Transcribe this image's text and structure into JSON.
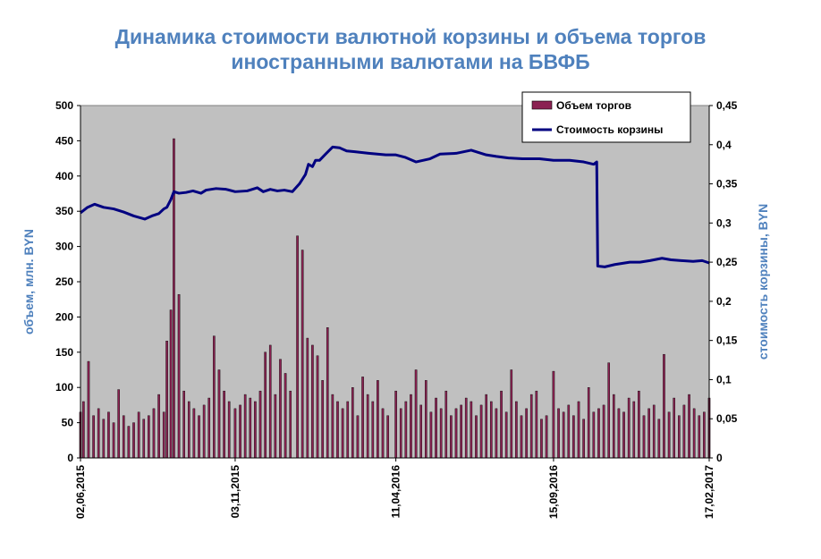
{
  "chart_data": {
    "type": "bar+line",
    "title_lines": [
      "Динамика стоимости валютной корзины и объема торгов",
      "иностранными валютами на БВФБ"
    ],
    "ylabel_left": "объем, млн. BYN",
    "ylabel_right": "стоимость корзины, BYN",
    "ylim_left": [
      0,
      500
    ],
    "ylim_right": [
      0,
      0.45
    ],
    "yticks_left": [
      "0",
      "50",
      "100",
      "150",
      "200",
      "250",
      "300",
      "350",
      "400",
      "450",
      "500"
    ],
    "yticks_right": [
      "0",
      "0,05",
      "0,1",
      "0,15",
      "0,2",
      "0,25",
      "0,3",
      "0,35",
      "0,4",
      "0,45"
    ],
    "x_tick_labels": [
      "02,06,2015",
      "03,11,2015",
      "11,04,2016",
      "15,09,2016",
      "17,02,2017"
    ],
    "x_range": [
      "2015-06-02",
      "2017-02-17"
    ],
    "x_ticks": [
      "2015-06-02",
      "2015-11-03",
      "2016-04-11",
      "2016-09-15",
      "2017-02-17"
    ],
    "grid": false,
    "plot_background": "#c0c0c0",
    "legend_position": "top-right",
    "series": [
      {
        "name": "Объем торгов",
        "type": "bar",
        "axis": "left",
        "color": "#8b2252",
        "dates": [
          "2015-06-02",
          "2015-06-05",
          "2015-06-10",
          "2015-06-15",
          "2015-06-20",
          "2015-06-25",
          "2015-06-30",
          "2015-07-05",
          "2015-07-10",
          "2015-07-15",
          "2015-07-20",
          "2015-07-25",
          "2015-07-30",
          "2015-08-04",
          "2015-08-09",
          "2015-08-14",
          "2015-08-19",
          "2015-08-24",
          "2015-08-27",
          "2015-08-31",
          "2015-09-03",
          "2015-09-08",
          "2015-09-13",
          "2015-09-18",
          "2015-09-23",
          "2015-09-28",
          "2015-10-03",
          "2015-10-08",
          "2015-10-13",
          "2015-10-18",
          "2015-10-23",
          "2015-10-28",
          "2015-11-03",
          "2015-11-08",
          "2015-11-13",
          "2015-11-18",
          "2015-11-23",
          "2015-11-28",
          "2015-12-03",
          "2015-12-08",
          "2015-12-13",
          "2015-12-18",
          "2015-12-23",
          "2015-12-28",
          "2016-01-04",
          "2016-01-09",
          "2016-01-14",
          "2016-01-19",
          "2016-01-24",
          "2016-01-29",
          "2016-02-03",
          "2016-02-08",
          "2016-02-13",
          "2016-02-18",
          "2016-02-23",
          "2016-02-28",
          "2016-03-04",
          "2016-03-09",
          "2016-03-14",
          "2016-03-19",
          "2016-03-24",
          "2016-03-29",
          "2016-04-03",
          "2016-04-11",
          "2016-04-16",
          "2016-04-21",
          "2016-04-26",
          "2016-05-01",
          "2016-05-06",
          "2016-05-11",
          "2016-05-16",
          "2016-05-21",
          "2016-05-26",
          "2016-05-31",
          "2016-06-05",
          "2016-06-10",
          "2016-06-15",
          "2016-06-20",
          "2016-06-25",
          "2016-06-30",
          "2016-07-05",
          "2016-07-10",
          "2016-07-15",
          "2016-07-20",
          "2016-07-25",
          "2016-07-30",
          "2016-08-04",
          "2016-08-09",
          "2016-08-14",
          "2016-08-19",
          "2016-08-24",
          "2016-08-29",
          "2016-09-03",
          "2016-09-08",
          "2016-09-15",
          "2016-09-20",
          "2016-09-25",
          "2016-09-30",
          "2016-10-05",
          "2016-10-10",
          "2016-10-15",
          "2016-10-20",
          "2016-10-25",
          "2016-10-30",
          "2016-11-04",
          "2016-11-09",
          "2016-11-14",
          "2016-11-19",
          "2016-11-24",
          "2016-11-29",
          "2016-12-04",
          "2016-12-09",
          "2016-12-14",
          "2016-12-19",
          "2016-12-24",
          "2016-12-29",
          "2017-01-03",
          "2017-01-08",
          "2017-01-13",
          "2017-01-18",
          "2017-01-23",
          "2017-01-28",
          "2017-02-02",
          "2017-02-07",
          "2017-02-12",
          "2017-02-17"
        ],
        "values": [
          65,
          80,
          137,
          60,
          70,
          55,
          65,
          50,
          97,
          60,
          45,
          50,
          65,
          55,
          60,
          70,
          90,
          65,
          166,
          210,
          453,
          232,
          95,
          80,
          70,
          60,
          75,
          85,
          173,
          125,
          95,
          80,
          70,
          75,
          90,
          85,
          80,
          95,
          150,
          160,
          90,
          140,
          120,
          95,
          315,
          295,
          170,
          160,
          145,
          110,
          185,
          90,
          80,
          70,
          80,
          100,
          60,
          115,
          90,
          80,
          110,
          70,
          60,
          95,
          70,
          80,
          90,
          125,
          75,
          110,
          65,
          85,
          70,
          95,
          60,
          70,
          75,
          85,
          80,
          60,
          75,
          90,
          80,
          70,
          95,
          65,
          125,
          80,
          60,
          70,
          90,
          95,
          55,
          60,
          123,
          70,
          65,
          75,
          60,
          80,
          55,
          100,
          65,
          70,
          75,
          135,
          90,
          70,
          65,
          85,
          80,
          95,
          60,
          70,
          75,
          55,
          147,
          65,
          85,
          60,
          75,
          90,
          70,
          60,
          65,
          85
        ]
      },
      {
        "name": "Стоимость корзины",
        "type": "line",
        "axis": "right",
        "color": "#000080",
        "dates": [
          "2015-06-02",
          "2015-06-09",
          "2015-06-16",
          "2015-06-25",
          "2015-07-05",
          "2015-07-15",
          "2015-07-25",
          "2015-08-05",
          "2015-08-12",
          "2015-08-19",
          "2015-08-24",
          "2015-08-27",
          "2015-08-31",
          "2015-09-03",
          "2015-09-08",
          "2015-09-15",
          "2015-09-22",
          "2015-09-30",
          "2015-10-05",
          "2015-10-15",
          "2015-10-25",
          "2015-11-03",
          "2015-11-15",
          "2015-11-25",
          "2015-12-01",
          "2015-12-08",
          "2015-12-15",
          "2015-12-22",
          "2015-12-30",
          "2016-01-06",
          "2016-01-12",
          "2016-01-15",
          "2016-01-19",
          "2016-01-22",
          "2016-01-26",
          "2016-02-01",
          "2016-02-08",
          "2016-02-15",
          "2016-02-22",
          "2016-03-01",
          "2016-03-15",
          "2016-04-01",
          "2016-04-11",
          "2016-04-20",
          "2016-05-01",
          "2016-05-15",
          "2016-05-25",
          "2016-06-10",
          "2016-06-25",
          "2016-07-10",
          "2016-07-20",
          "2016-08-01",
          "2016-08-15",
          "2016-09-01",
          "2016-09-15",
          "2016-10-01",
          "2016-10-15",
          "2016-10-25",
          "2016-10-28",
          "2016-10-29",
          "2016-11-05",
          "2016-11-15",
          "2016-11-30",
          "2016-12-10",
          "2016-12-20",
          "2017-01-01",
          "2017-01-10",
          "2017-01-20",
          "2017-02-01",
          "2017-02-10",
          "2017-02-17"
        ],
        "values": [
          0.313,
          0.32,
          0.324,
          0.32,
          0.318,
          0.314,
          0.309,
          0.305,
          0.309,
          0.312,
          0.318,
          0.32,
          0.33,
          0.34,
          0.338,
          0.339,
          0.341,
          0.338,
          0.342,
          0.344,
          0.343,
          0.34,
          0.341,
          0.345,
          0.34,
          0.343,
          0.341,
          0.342,
          0.34,
          0.35,
          0.362,
          0.375,
          0.372,
          0.38,
          0.38,
          0.388,
          0.397,
          0.396,
          0.392,
          0.391,
          0.389,
          0.387,
          0.387,
          0.384,
          0.378,
          0.382,
          0.388,
          0.389,
          0.393,
          0.387,
          0.385,
          0.383,
          0.382,
          0.382,
          0.38,
          0.38,
          0.378,
          0.375,
          0.378,
          0.245,
          0.244,
          0.247,
          0.25,
          0.25,
          0.252,
          0.255,
          0.253,
          0.252,
          0.251,
          0.252,
          0.249
        ]
      }
    ]
  }
}
